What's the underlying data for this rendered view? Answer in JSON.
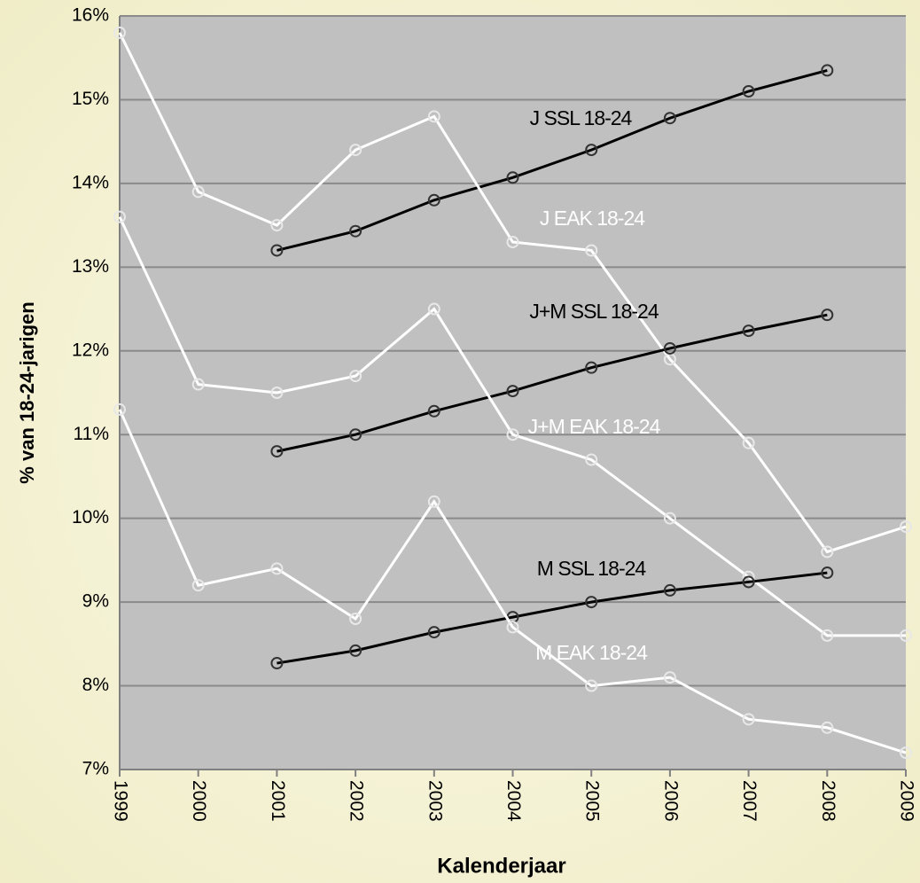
{
  "chart_data": {
    "type": "line",
    "x_label": "Kalenderjaar",
    "y_label": "% van 18-24-jarigen",
    "categories": [
      "1999",
      "2000",
      "2001",
      "2002",
      "2003",
      "2004",
      "2005",
      "2006",
      "2007",
      "2008",
      "2009"
    ],
    "ylim": [
      7,
      16
    ],
    "yticks": [
      {
        "value": 7,
        "label": "7%"
      },
      {
        "value": 8,
        "label": "8%"
      },
      {
        "value": 9,
        "label": "9%"
      },
      {
        "value": 10,
        "label": "10%"
      },
      {
        "value": 11,
        "label": "11%"
      },
      {
        "value": 12,
        "label": "12%"
      },
      {
        "value": 13,
        "label": "13%"
      },
      {
        "value": 14,
        "label": "14%"
      },
      {
        "value": 15,
        "label": "15%"
      },
      {
        "value": 16,
        "label": "16%"
      }
    ],
    "grid": true,
    "series": [
      {
        "name": "J SSL 18-24",
        "color": "#000000",
        "values": [
          null,
          null,
          13.2,
          13.43,
          13.8,
          14.07,
          14.4,
          14.78,
          15.1,
          15.35,
          null
        ]
      },
      {
        "name": "J EAK 18-24",
        "color": "#ffffff",
        "values": [
          15.8,
          13.9,
          13.5,
          14.4,
          14.8,
          13.3,
          13.2,
          11.9,
          10.9,
          9.6,
          9.9
        ]
      },
      {
        "name": "J+M SSL 18-24",
        "color": "#000000",
        "values": [
          null,
          null,
          10.8,
          11.0,
          11.28,
          11.52,
          11.8,
          12.03,
          12.24,
          12.43,
          null
        ]
      },
      {
        "name": "J+M EAK 18-24",
        "color": "#ffffff",
        "values": [
          13.6,
          11.6,
          11.5,
          11.7,
          12.5,
          11.0,
          10.7,
          10.0,
          9.3,
          8.6,
          8.6
        ]
      },
      {
        "name": "M SSL 18-24",
        "color": "#000000",
        "values": [
          null,
          null,
          8.27,
          8.42,
          8.64,
          8.82,
          9.0,
          9.14,
          9.24,
          9.35,
          null
        ]
      },
      {
        "name": "M EAK 18-24",
        "color": "#ffffff",
        "values": [
          11.3,
          9.2,
          9.4,
          8.8,
          10.2,
          8.7,
          8.0,
          8.1,
          7.6,
          7.5,
          7.2
        ]
      }
    ]
  }
}
